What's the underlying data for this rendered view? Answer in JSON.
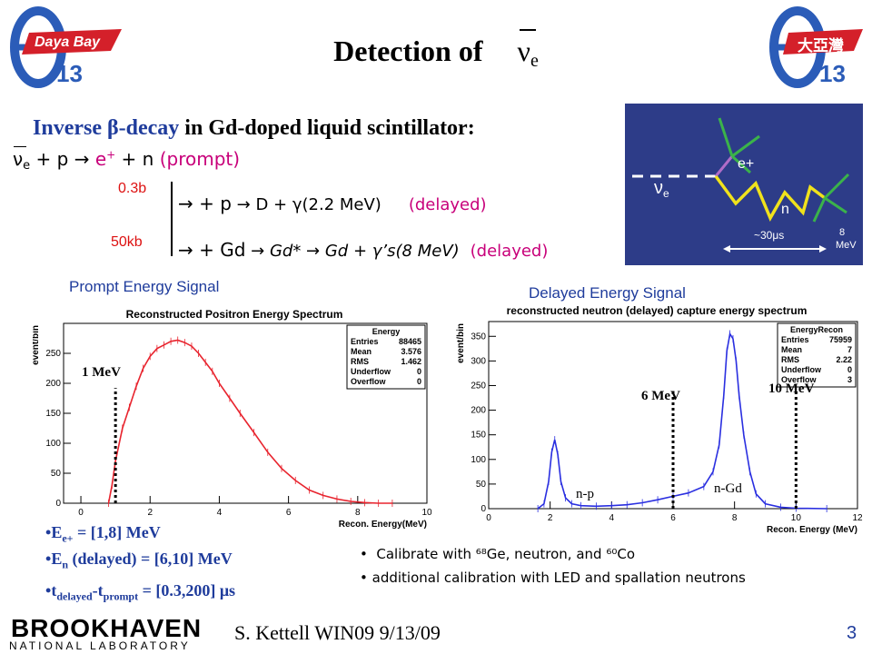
{
  "slide": {
    "title_prefix": "Detection of",
    "title_symbol": "ν",
    "title_sub": "e",
    "subtitle_a": "Inverse ",
    "subtitle_beta": "β",
    "subtitle_b": "-decay",
    "subtitle_c": " in Gd-doped liquid scintillator:",
    "page_number": "3",
    "footer": "S. Kettell WIN09 9/13/09",
    "logo_left_text": "Daya Bay",
    "logo_left_num": "13",
    "logo_right_text": "大亞灣",
    "logo_right_num": "13",
    "bnl_line1": "BROOKHAVEN",
    "bnl_line2": "NATIONAL LABORATORY"
  },
  "reaction": {
    "prompt_lhs": "ν",
    "prompt_sub": "e",
    "prompt_mid": " + p → ",
    "prompt_e": "e",
    "prompt_eplus": "+",
    "prompt_n": " + n ",
    "prompt_tag": "(prompt)",
    "cs1": "0.3b",
    "cs2": "50kb",
    "line1_main": "→ + p",
    "line1_rest": " → D + γ(2.2 MeV)",
    "line1_tag": "(delayed)",
    "line2_main": "→ + Gd",
    "line2_rest": " → Gd* → Gd + γ’s(8 MeV)",
    "line2_tag": "(delayed)"
  },
  "diagram": {
    "nu": "ν",
    "nu_sub": "e",
    "eplus": "e+",
    "n": "n",
    "time": "~30μs",
    "energy_line1": "8",
    "energy_line2": "MeV"
  },
  "labels": {
    "prompt_signal": "Prompt Energy Signal",
    "delayed_signal": "Delayed Energy Signal",
    "mark_1mev": "1 MeV",
    "mark_6mev": "6 MeV",
    "mark_10mev": "10 MeV",
    "np": "n-p",
    "ngd": "n-Gd"
  },
  "cuts": [
    {
      "pre": "E",
      "sub": "e+",
      "post": " = [1,8] MeV"
    },
    {
      "pre": "E",
      "sub": "n",
      "post": " (delayed) = [6,10] MeV"
    },
    {
      "pre": "t",
      "sub": "delayed",
      "mid": "-t",
      "sub2": "prompt",
      "post": " = [0.3,200] μs"
    }
  ],
  "calibration": [
    "Calibrate with ⁶⁸Ge, neutron, and ⁶⁰Co",
    "additional calibration with LED and spallation neutrons"
  ],
  "chart_data": [
    {
      "type": "line",
      "title": "Reconstructed Positron Energy Spectrum",
      "xlabel": "Recon. Energy(MeV)",
      "ylabel": "event/bin",
      "xlim": [
        -0.5,
        10
      ],
      "ylim": [
        0,
        300
      ],
      "x_ticks": [
        0,
        2,
        4,
        6,
        8,
        10
      ],
      "y_ticks": [
        0,
        50,
        100,
        150,
        200,
        250
      ],
      "color": "#e8242e",
      "stats": {
        "name": "Energy",
        "rows": [
          [
            "Entries",
            "88465"
          ],
          [
            "Mean",
            "3.576"
          ],
          [
            "RMS",
            "1.462"
          ],
          [
            "Underflow",
            "0"
          ],
          [
            "Overflow",
            "0"
          ]
        ]
      },
      "series": [
        {
          "x": [
            0.8,
            0.9,
            1.0,
            1.2,
            1.4,
            1.6,
            1.8,
            2.0,
            2.2,
            2.4,
            2.6,
            2.8,
            3.0,
            3.2,
            3.4,
            3.6,
            3.8,
            4.0,
            4.3,
            4.6,
            5.0,
            5.4,
            5.8,
            6.2,
            6.6,
            7.0,
            7.4,
            7.8,
            8.2,
            8.6,
            9.0
          ],
          "y": [
            0,
            30,
            70,
            125,
            160,
            195,
            225,
            245,
            258,
            264,
            270,
            272,
            268,
            262,
            250,
            235,
            220,
            200,
            175,
            150,
            118,
            85,
            58,
            38,
            22,
            13,
            7,
            3,
            1,
            0,
            0
          ]
        }
      ],
      "dashed_marks": [
        1
      ]
    },
    {
      "type": "line",
      "title": "reconstructed neutron (delayed) capture energy spectrum",
      "xlabel": "Recon. Energy (MeV)",
      "ylabel": "event/bin",
      "xlim": [
        0,
        12
      ],
      "ylim": [
        0,
        380
      ],
      "x_ticks": [
        0,
        2,
        4,
        6,
        8,
        10,
        12
      ],
      "y_ticks": [
        0,
        50,
        100,
        150,
        200,
        250,
        300,
        350
      ],
      "color": "#2a2fe0",
      "stats": {
        "name": "EnergyRecon",
        "rows": [
          [
            "Entries",
            "75959"
          ],
          [
            "Mean",
            "7"
          ],
          [
            "RMS",
            "2.22"
          ],
          [
            "Underflow",
            "0"
          ],
          [
            "Overflow",
            "3"
          ]
        ]
      },
      "series": [
        {
          "x": [
            1.6,
            1.8,
            1.95,
            2.05,
            2.15,
            2.25,
            2.35,
            2.5,
            2.7,
            3.0,
            3.5,
            4.0,
            4.5,
            5.0,
            5.5,
            6.0,
            6.5,
            7.0,
            7.3,
            7.5,
            7.65,
            7.75,
            7.85,
            7.95,
            8.05,
            8.15,
            8.3,
            8.5,
            8.7,
            9.0,
            9.5,
            10.0,
            11.0
          ],
          "y": [
            0,
            10,
            55,
            115,
            140,
            110,
            55,
            22,
            10,
            6,
            5,
            6,
            8,
            12,
            18,
            25,
            32,
            45,
            75,
            130,
            230,
            320,
            355,
            345,
            300,
            230,
            150,
            75,
            30,
            10,
            3,
            1,
            0
          ]
        }
      ],
      "dashed_marks": [
        6,
        10
      ]
    }
  ]
}
